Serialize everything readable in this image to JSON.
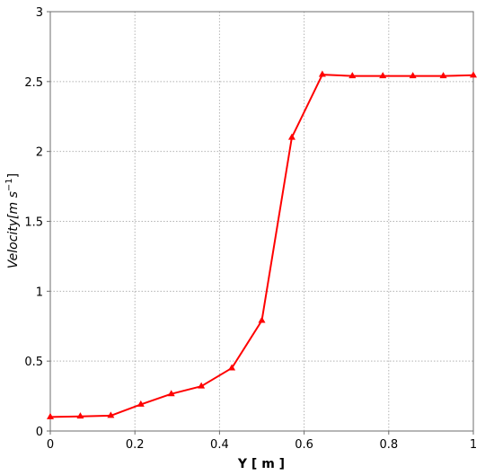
{
  "chart_data": {
    "type": "line",
    "title": "",
    "xlabel": "Y [ m ]",
    "ylabel_main": "Velocity",
    "ylabel_unit_prefix": "[m s",
    "ylabel_unit_exponent": "−1",
    "ylabel_unit_suffix": "]",
    "xlim": [
      0,
      1
    ],
    "ylim": [
      0,
      3
    ],
    "x_ticks": [
      "0",
      "0.2",
      "0.4",
      "0.6",
      "0.8",
      "1"
    ],
    "y_ticks": [
      "0",
      "0.5",
      "1",
      "1.5",
      "2",
      "2.5",
      "3"
    ],
    "x_grid_values": [
      0,
      0.2,
      0.4,
      0.6,
      0.8,
      1
    ],
    "y_grid_values": [
      0,
      0.5,
      1,
      1.5,
      2,
      2.5,
      3
    ],
    "grid": true,
    "series": [
      {
        "color": "#ff0000",
        "marker": "triangle",
        "x": [
          0,
          0.071,
          0.143,
          0.214,
          0.286,
          0.357,
          0.429,
          0.5,
          0.571,
          0.643,
          0.714,
          0.786,
          0.857,
          0.929,
          1.0
        ],
        "y": [
          0.1,
          0.105,
          0.11,
          0.19,
          0.265,
          0.32,
          0.45,
          0.79,
          2.1,
          2.55,
          2.54,
          2.54,
          2.54,
          2.54,
          2.545
        ]
      }
    ]
  }
}
